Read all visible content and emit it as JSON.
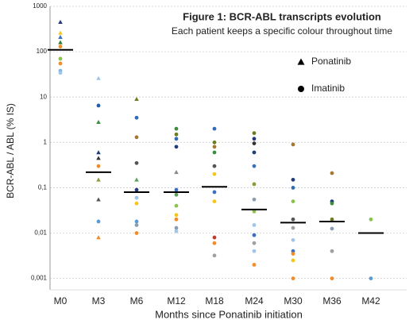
{
  "chart_data": {
    "type": "scatter",
    "title": "Figure 1: BCR-ABL transcripts evolution",
    "subtitle": "Each patient keeps a specific colour throughout time",
    "xlabel": "Months since Ponatinib initiation",
    "ylabel": "BCR-ABL / ABL (% IS)",
    "log_y": true,
    "grid": true,
    "legend": "upper right",
    "categories": [
      "M0",
      "M3",
      "M6",
      "M12",
      "M18",
      "M24",
      "M30",
      "M36",
      "M42"
    ],
    "ylim": [
      0.00056,
      1000
    ],
    "yticks": [
      {
        "value": 0.001,
        "label": "0,001"
      },
      {
        "value": 0.01,
        "label": "0,01"
      },
      {
        "value": 0.1,
        "label": "0,1"
      },
      1,
      10,
      100,
      1000
    ],
    "series": [
      {
        "name": "Ponatinib",
        "marker": "triangle",
        "x": [
          "M0",
          "M0",
          "M0",
          "M0",
          "M3",
          "M3",
          "M3",
          "M3",
          "M3",
          "M3",
          "M3",
          "M6",
          "M6",
          "M12"
        ],
        "values": [
          450,
          260,
          210,
          160,
          26,
          2.8,
          0.6,
          0.45,
          0.15,
          0.055,
          0.008,
          9,
          0.15,
          0.22
        ],
        "colors": [
          "#1f3b7a",
          "#f5c518",
          "#3a6fc4",
          "#2e7d32",
          "#9fc6e8",
          "#3c8d3c",
          "#1f3b7a",
          "#333333",
          "#8a9a3c",
          "#555555",
          "#f28c28",
          "#6b7d1f",
          "#5aa05a",
          "#8a8a8a"
        ]
      },
      {
        "name": "Imatinib",
        "marker": "circle",
        "x": [
          "M0",
          "M0",
          "M0",
          "M0",
          "M0",
          "M3",
          "M3",
          "M3",
          "M6",
          "M6",
          "M6",
          "M6",
          "M6",
          "M6",
          "M6",
          "M6",
          "M6",
          "M12",
          "M12",
          "M12",
          "M12",
          "M12",
          "M12",
          "M12",
          "M12",
          "M12",
          "M12",
          "M12",
          "M18",
          "M18",
          "M18",
          "M18",
          "M18",
          "M18",
          "M18",
          "M18",
          "M18",
          "M18",
          "M18",
          "M24",
          "M24",
          "M24",
          "M24",
          "M24",
          "M24",
          "M24",
          "M24",
          "M24",
          "M24",
          "M24",
          "M24",
          "M24",
          "M30",
          "M30",
          "M30",
          "M30",
          "M30",
          "M30",
          "M30",
          "M30",
          "M30",
          "M30",
          "M30",
          "M36",
          "M36",
          "M36",
          "M36",
          "M36",
          "M36",
          "M36",
          "M42",
          "M42"
        ],
        "values": [
          130,
          70,
          55,
          38,
          34,
          6.5,
          0.3,
          0.018,
          3.5,
          1.3,
          0.35,
          0.09,
          0.06,
          0.045,
          0.018,
          0.015,
          0.01,
          2,
          1.5,
          1.2,
          0.8,
          0.09,
          0.07,
          0.04,
          0.025,
          0.02,
          0.013,
          0.011,
          2,
          1,
          0.8,
          0.6,
          0.3,
          0.2,
          0.08,
          0.05,
          0.008,
          0.006,
          0.0032,
          1.6,
          1.2,
          0.95,
          0.6,
          0.3,
          0.12,
          0.055,
          0.03,
          0.015,
          0.009,
          0.006,
          0.004,
          0.002,
          0.9,
          0.15,
          0.1,
          0.05,
          0.02,
          0.013,
          0.007,
          0.004,
          0.0035,
          0.0025,
          0.001,
          0.21,
          0.05,
          0.045,
          0.02,
          0.0125,
          0.004,
          0.001,
          0.02,
          0.001
        ],
        "colors": [
          "#f28c28",
          "#8bc34a",
          "#f28c28",
          "#7fb3e6",
          "#9fc6e8",
          "#1f5fa8",
          "#f28c28",
          "#5b9bd5",
          "#2e6db4",
          "#a5782e",
          "#555555",
          "#1f3b7a",
          "#9fc6e8",
          "#f5c518",
          "#5b9bd5",
          "#8a9bb0",
          "#f28c28",
          "#3c8d3c",
          "#6b7d1f",
          "#2e6db4",
          "#1f3b7a",
          "#3a6fc4",
          "#5aa05a",
          "#8bc34a",
          "#f5c518",
          "#f28c28",
          "#8a9bb0",
          "#9fc6e8",
          "#2e6db4",
          "#6b7d1f",
          "#a5782e",
          "#3c8d3c",
          "#555555",
          "#f5c518",
          "#3a6fc4",
          "#f5c518",
          "#c0392b",
          "#f28c28",
          "#a0a0a0",
          "#6b7d1f",
          "#1f3b7a",
          "#333333",
          "#1f3b7a",
          "#3a6fc4",
          "#8a9a3c",
          "#8a9bb0",
          "#8bc34a",
          "#9fc6e8",
          "#3a6fc4",
          "#a0a0a0",
          "#9fc6e8",
          "#f28c28",
          "#a5782e",
          "#1f3b7a",
          "#2e6db4",
          "#8bc34a",
          "#555555",
          "#a0a0a0",
          "#9fc6e8",
          "#3a6fc4",
          "#f28c28",
          "#f5c518",
          "#f28c28",
          "#a5782e",
          "#1f3b7a",
          "#3c8d3c",
          "#6b7d1f",
          "#8a9bb0",
          "#a0a0a0",
          "#f28c28",
          "#8bc34a",
          "#5b9bd5"
        ]
      }
    ],
    "medians": [
      110,
      0.22,
      0.08,
      0.08,
      0.105,
      0.033,
      0.017,
      0.018,
      0.01
    ],
    "median_color": "#000000"
  }
}
